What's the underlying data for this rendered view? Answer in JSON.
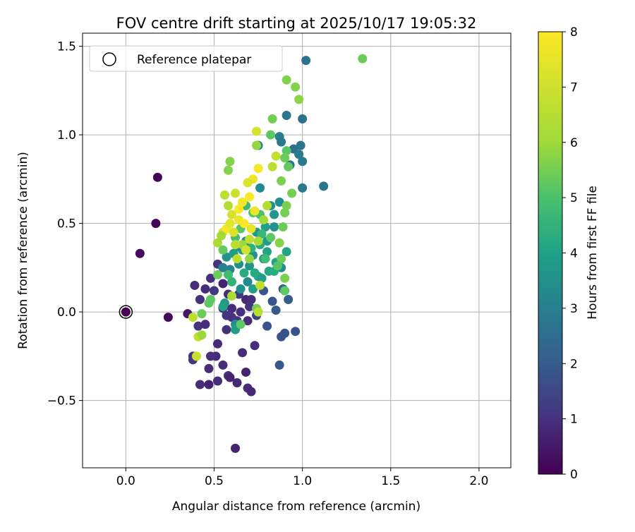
{
  "chart_data": {
    "type": "scatter",
    "title": "FOV centre drift starting at 2025/10/17 19:05:32",
    "xlabel": "Angular distance from reference (arcmin)",
    "ylabel": "Rotation from reference (arcmin)",
    "xlim": [
      -0.245,
      2.18
    ],
    "ylim": [
      -0.88,
      1.574
    ],
    "grid": true,
    "xticks": [
      {
        "v": 0.0,
        "label": "0.0"
      },
      {
        "v": 0.5,
        "label": "0.5"
      },
      {
        "v": 1.0,
        "label": "1.0"
      },
      {
        "v": 1.5,
        "label": "1.5"
      },
      {
        "v": 2.0,
        "label": "2.0"
      }
    ],
    "yticks": [
      {
        "v": -0.5,
        "label": "−0.5"
      },
      {
        "v": 0.0,
        "label": "0.0"
      },
      {
        "v": 0.5,
        "label": "0.5"
      },
      {
        "v": 1.0,
        "label": "1.0"
      },
      {
        "v": 1.5,
        "label": "1.5"
      }
    ],
    "legend": {
      "placement": "top-left",
      "entries": [
        "Reference platepar"
      ]
    },
    "reference_point": [
      0.0,
      0.0
    ],
    "colorbar": {
      "label": "Hours from first FF file",
      "range": [
        0,
        8
      ],
      "colormap": "viridis",
      "ticks": [
        {
          "v": 0,
          "label": "0"
        },
        {
          "v": 1,
          "label": "1"
        },
        {
          "v": 2,
          "label": "2"
        },
        {
          "v": 3,
          "label": "3"
        },
        {
          "v": 4,
          "label": "4"
        },
        {
          "v": 5,
          "label": "5"
        },
        {
          "v": 6,
          "label": "6"
        },
        {
          "v": 7,
          "label": "7"
        },
        {
          "v": 8,
          "label": "8"
        }
      ]
    },
    "points_columns": [
      "distance_arcmin",
      "rotation_arcmin",
      "hours"
    ],
    "points": [
      [
        0.0,
        0.0,
        0
      ],
      [
        0.18,
        0.76,
        0.1
      ],
      [
        0.17,
        0.5,
        0.1
      ],
      [
        0.08,
        0.33,
        0.2
      ],
      [
        0.24,
        -0.03,
        0.2
      ],
      [
        0.35,
        -0.01,
        0.5
      ],
      [
        0.62,
        -0.77,
        0.8
      ],
      [
        0.39,
        0.15,
        1
      ],
      [
        0.42,
        -0.41,
        1
      ],
      [
        0.47,
        -0.41,
        0.8
      ],
      [
        0.47,
        -0.32,
        1
      ],
      [
        0.52,
        -0.39,
        1
      ],
      [
        0.55,
        -0.3,
        1
      ],
      [
        0.58,
        -0.36,
        1
      ],
      [
        0.59,
        -0.37,
        0.8
      ],
      [
        0.63,
        -0.4,
        0.9
      ],
      [
        0.68,
        -0.34,
        0.8
      ],
      [
        0.69,
        -0.43,
        1
      ],
      [
        0.71,
        -0.45,
        0.9
      ],
      [
        0.66,
        -0.23,
        1
      ],
      [
        0.73,
        -0.19,
        1
      ],
      [
        0.69,
        -0.05,
        1
      ],
      [
        0.63,
        -0.05,
        1.2
      ],
      [
        0.57,
        -0.1,
        1.1
      ],
      [
        0.52,
        -0.18,
        1
      ],
      [
        0.51,
        -0.25,
        1
      ],
      [
        0.48,
        -0.25,
        1.1
      ],
      [
        0.38,
        -0.25,
        1.2
      ],
      [
        0.38,
        -0.27,
        1.3
      ],
      [
        0.41,
        -0.08,
        1.2
      ],
      [
        0.45,
        -0.07,
        1.1
      ],
      [
        0.42,
        0.07,
        1.2
      ],
      [
        0.45,
        0.13,
        1
      ],
      [
        0.48,
        0.19,
        1.1
      ],
      [
        0.52,
        0.27,
        1.2
      ],
      [
        0.5,
        0.12,
        1.3
      ],
      [
        0.55,
        0.02,
        1.2
      ],
      [
        0.57,
        -0.02,
        1.3
      ],
      [
        0.6,
        -0.03,
        1.2
      ],
      [
        0.6,
        0.02,
        1
      ],
      [
        0.65,
        0.0,
        1.1
      ],
      [
        0.68,
        0.07,
        0.9
      ],
      [
        0.71,
        0.07,
        1.0
      ],
      [
        0.55,
        0.16,
        0.8
      ],
      [
        0.58,
        0.1,
        1
      ],
      [
        0.64,
        0.1,
        1.4
      ],
      [
        0.7,
        0.03,
        1.2
      ],
      [
        0.74,
        -0.02,
        1.6
      ],
      [
        0.8,
        -0.08,
        2
      ],
      [
        0.87,
        -0.3,
        2.2
      ],
      [
        0.88,
        -0.14,
        2
      ],
      [
        0.9,
        -0.12,
        2.1
      ],
      [
        0.96,
        -0.11,
        2
      ],
      [
        0.92,
        0.07,
        2.3
      ],
      [
        0.85,
        0.01,
        2.3
      ],
      [
        0.83,
        0.06,
        2.1
      ],
      [
        0.89,
        0.13,
        2.4
      ],
      [
        0.78,
        0.12,
        2.2
      ],
      [
        1.02,
        1.42,
        3
      ],
      [
        0.91,
        1.11,
        3.2
      ],
      [
        1.0,
        1.09,
        3
      ],
      [
        0.87,
        0.99,
        3.4
      ],
      [
        0.88,
        0.96,
        3.2
      ],
      [
        0.95,
        0.92,
        3
      ],
      [
        0.98,
        0.89,
        3.3
      ],
      [
        0.99,
        0.94,
        3.1
      ],
      [
        1.0,
        0.85,
        3.2
      ],
      [
        0.93,
        0.83,
        3.3
      ],
      [
        1.0,
        0.7,
        3.2
      ],
      [
        1.12,
        0.71,
        3.1
      ],
      [
        0.75,
        0.94,
        3.5
      ],
      [
        0.76,
        0.7,
        3.8
      ],
      [
        0.82,
        0.6,
        4
      ],
      [
        0.87,
        0.62,
        3.9
      ],
      [
        0.84,
        0.55,
        4.2
      ],
      [
        0.79,
        0.48,
        4.5
      ],
      [
        0.74,
        0.45,
        4.2
      ],
      [
        0.68,
        0.4,
        4
      ],
      [
        0.66,
        0.35,
        4.5
      ],
      [
        0.72,
        0.32,
        4.1
      ],
      [
        0.78,
        0.3,
        4.3
      ],
      [
        0.85,
        0.28,
        4.5
      ],
      [
        0.88,
        0.25,
        4
      ],
      [
        0.91,
        0.34,
        4.7
      ],
      [
        0.81,
        0.23,
        4.8
      ],
      [
        0.84,
        0.23,
        5
      ],
      [
        0.75,
        0.2,
        4.6
      ],
      [
        0.7,
        0.26,
        4.2
      ],
      [
        0.64,
        0.27,
        4.0
      ],
      [
        0.63,
        0.37,
        3.8
      ],
      [
        0.61,
        0.33,
        4.3
      ],
      [
        0.59,
        0.24,
        3.6
      ],
      [
        0.55,
        0.25,
        3.5
      ],
      [
        0.65,
        0.13,
        4
      ],
      [
        0.69,
        0.17,
        3.8
      ],
      [
        0.72,
        0.13,
        4.5
      ],
      [
        0.57,
        0.31,
        4.1
      ],
      [
        0.73,
        0.22,
        4.9
      ],
      [
        0.77,
        0.19,
        4.4
      ],
      [
        0.62,
        -0.07,
        4
      ],
      [
        0.62,
        -0.1,
        4.4
      ],
      [
        0.56,
        0.05,
        4.3
      ],
      [
        0.55,
        0.03,
        4.5
      ],
      [
        0.8,
        0.4,
        4.3
      ],
      [
        0.8,
        0.34,
        4.7
      ],
      [
        0.84,
        0.48,
        4.1
      ],
      [
        0.76,
        0.38,
        4.9
      ],
      [
        0.71,
        0.36,
        5.2
      ],
      [
        0.67,
        0.22,
        5.0
      ],
      [
        0.6,
        0.17,
        5.2
      ],
      [
        0.58,
        0.21,
        5.5
      ],
      [
        1.34,
        1.43,
        6.2
      ],
      [
        0.91,
        1.31,
        6.5
      ],
      [
        0.96,
        1.27,
        6.5
      ],
      [
        0.98,
        1.2,
        6.6
      ],
      [
        0.83,
        1.09,
        6.3
      ],
      [
        0.82,
        1.0,
        6
      ],
      [
        0.91,
        0.91,
        6
      ],
      [
        0.9,
        0.87,
        6.2
      ],
      [
        0.92,
        0.82,
        6.1
      ],
      [
        0.88,
        0.74,
        6.4
      ],
      [
        0.94,
        0.67,
        6.3
      ],
      [
        0.91,
        0.6,
        6.4
      ],
      [
        0.9,
        0.56,
        6.3
      ],
      [
        0.89,
        0.48,
        6.2
      ],
      [
        0.87,
        0.39,
        6.5
      ],
      [
        0.88,
        0.3,
        6.2
      ],
      [
        0.9,
        0.19,
        6.4
      ],
      [
        0.9,
        0.12,
        6
      ],
      [
        0.82,
        0.42,
        6
      ],
      [
        0.76,
        0.55,
        5.7
      ],
      [
        0.72,
        0.56,
        5.8
      ],
      [
        0.68,
        0.6,
        5.5
      ],
      [
        0.65,
        0.47,
        5.9
      ],
      [
        0.62,
        0.42,
        5.6
      ],
      [
        0.55,
        0.35,
        6.1
      ],
      [
        0.52,
        0.21,
        6.2
      ],
      [
        0.48,
        0.07,
        6
      ],
      [
        0.43,
        -0.01,
        6.2
      ],
      [
        0.47,
        0.05,
        6
      ],
      [
        0.59,
        0.85,
        6.5
      ],
      [
        0.74,
        0.94,
        6.7
      ],
      [
        0.58,
        0.8,
        6.5
      ],
      [
        0.74,
        0.02,
        6.3
      ],
      [
        0.65,
        -0.07,
        6
      ],
      [
        0.79,
        0.3,
        5.5
      ],
      [
        0.77,
        0.44,
        5.4
      ],
      [
        0.86,
        0.26,
        5.9
      ],
      [
        0.7,
        0.3,
        6.7
      ],
      [
        0.66,
        0.38,
        6.8
      ],
      [
        0.74,
        1.02,
        7.5
      ],
      [
        0.85,
        0.88,
        7.3
      ],
      [
        0.83,
        0.82,
        7.2
      ],
      [
        0.75,
        0.81,
        7.9
      ],
      [
        0.72,
        0.75,
        7.8
      ],
      [
        0.69,
        0.73,
        7.6
      ],
      [
        0.62,
        0.67,
        7.4
      ],
      [
        0.58,
        0.6,
        7.1
      ],
      [
        0.56,
        0.66,
        7.2
      ],
      [
        0.6,
        0.55,
        7.5
      ],
      [
        0.64,
        0.52,
        7.8
      ],
      [
        0.67,
        0.5,
        8
      ],
      [
        0.71,
        0.47,
        7.7
      ],
      [
        0.7,
        0.41,
        7.3
      ],
      [
        0.62,
        0.38,
        7.2
      ],
      [
        0.66,
        0.62,
        7.9
      ],
      [
        0.7,
        0.65,
        8
      ],
      [
        0.73,
        0.57,
        7.8
      ],
      [
        0.55,
        0.45,
        7.6
      ],
      [
        0.57,
        0.47,
        7.9
      ],
      [
        0.52,
        0.39,
        7.0
      ],
      [
        0.54,
        0.43,
        6.9
      ],
      [
        0.63,
        0.3,
        7.2
      ],
      [
        0.68,
        0.35,
        7.5
      ],
      [
        0.75,
        0.4,
        7.0
      ],
      [
        0.8,
        0.6,
        7.1
      ],
      [
        0.78,
        0.52,
        6.9
      ],
      [
        0.76,
        0.15,
        7.3
      ],
      [
        0.6,
        0.09,
        7.0
      ],
      [
        0.75,
        0.0,
        7.2
      ],
      [
        0.38,
        -0.03,
        7.2
      ],
      [
        0.4,
        -0.25,
        7.4
      ],
      [
        0.41,
        -0.14,
        7.3
      ],
      [
        0.43,
        -0.13,
        6.8
      ],
      [
        0.61,
        0.45,
        7.6
      ],
      [
        0.64,
        0.58,
        8
      ],
      [
        0.59,
        0.5,
        7.7
      ]
    ]
  }
}
